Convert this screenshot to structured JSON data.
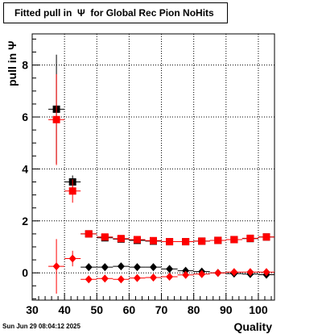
{
  "title": "Fitted pull in  Ψ  for Global Rec Pion NoHits",
  "timestamp": "Sun Jun 29 08:04:12 2025",
  "chart_data": {
    "type": "scatter",
    "title": "Fitted pull in  Ψ  for Global Rec Pion NoHits",
    "xlabel": "Quality",
    "ylabel": "pull in  Ψ",
    "xlim": [
      30,
      105
    ],
    "ylim": [
      -1.05,
      9.2
    ],
    "x_ticks": [
      30,
      40,
      50,
      60,
      70,
      80,
      90,
      100
    ],
    "y_ticks": [
      0,
      2,
      4,
      6,
      8
    ],
    "grid": true,
    "series": [
      {
        "marker": "square",
        "color": "#000000",
        "x": [
          37.5,
          42.5,
          47.5,
          52.5,
          57.5,
          62.5,
          67.5,
          72.5,
          77.5,
          82.5,
          87.5,
          92.5,
          97.5,
          102.5
        ],
        "y": [
          6.3,
          3.5,
          1.5,
          1.35,
          1.3,
          1.25,
          1.22,
          1.2,
          1.2,
          1.22,
          1.25,
          1.28,
          1.32,
          1.38
        ],
        "err": [
          2.1,
          0.25,
          0.06,
          0.04,
          0.03,
          0.03,
          0.03,
          0.03,
          0.03,
          0.03,
          0.03,
          0.03,
          0.03,
          0.04
        ]
      },
      {
        "marker": "square",
        "color": "#ff0000",
        "x": [
          37.5,
          42.5,
          47.5,
          52.5,
          57.5,
          62.5,
          67.5,
          72.5,
          77.5,
          82.5,
          87.5,
          92.5,
          97.5,
          102.5
        ],
        "y": [
          5.9,
          3.15,
          1.5,
          1.38,
          1.32,
          1.28,
          1.24,
          1.2,
          1.2,
          1.22,
          1.25,
          1.28,
          1.33,
          1.38
        ],
        "err": [
          1.75,
          0.45,
          0.06,
          0.04,
          0.03,
          0.03,
          0.03,
          0.03,
          0.03,
          0.03,
          0.03,
          0.03,
          0.03,
          0.04
        ]
      },
      {
        "marker": "diamond",
        "color": "#000000",
        "x": [
          47.5,
          52.5,
          57.5,
          62.5,
          67.5,
          72.5,
          77.5,
          82.5,
          87.5,
          92.5,
          97.5,
          102.5
        ],
        "y": [
          0.22,
          0.22,
          0.25,
          0.22,
          0.22,
          0.15,
          0.08,
          0.05,
          0.0,
          -0.03,
          -0.05,
          -0.07
        ],
        "err": [
          0.05,
          0.04,
          0.04,
          0.03,
          0.03,
          0.03,
          0.03,
          0.03,
          0.03,
          0.03,
          0.03,
          0.03
        ]
      },
      {
        "marker": "diamond",
        "color": "#ff0000",
        "x": [
          37.5,
          42.5,
          47.5,
          52.5,
          57.5,
          62.5,
          67.5,
          72.5,
          77.5,
          82.5,
          87.5,
          92.5,
          97.5,
          102.5
        ],
        "y": [
          0.25,
          0.55,
          -0.25,
          -0.22,
          -0.25,
          -0.2,
          -0.18,
          -0.15,
          -0.08,
          -0.05,
          0.0,
          0.03,
          0.03,
          0.03
        ],
        "err": [
          1.05,
          0.3,
          0.05,
          0.04,
          0.04,
          0.03,
          0.03,
          0.03,
          0.03,
          0.03,
          0.03,
          0.03,
          0.03,
          0.04
        ]
      }
    ]
  }
}
